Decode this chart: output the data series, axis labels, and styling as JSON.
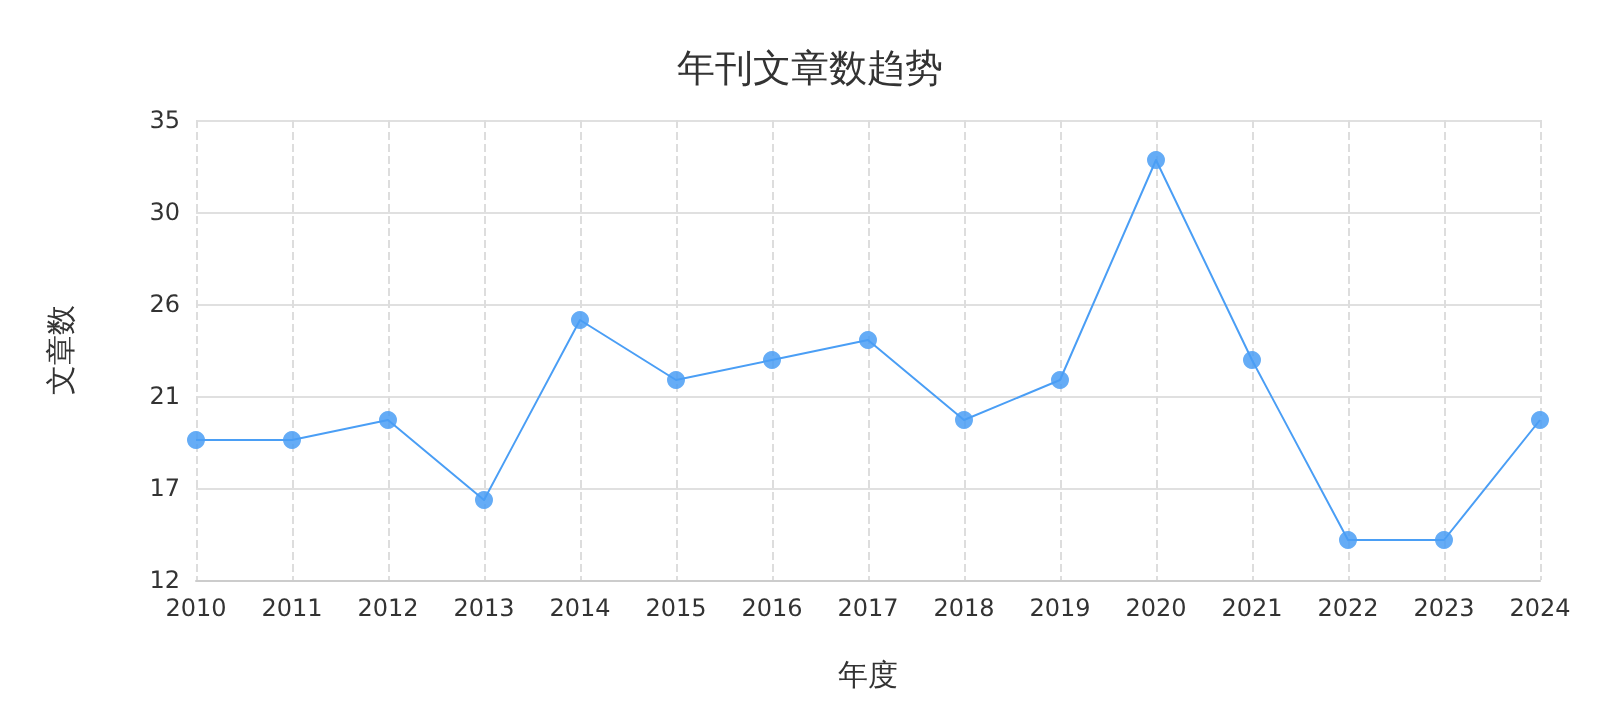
{
  "chart_data": {
    "type": "line",
    "title": "年刊文章数趋势",
    "xlabel": "年度",
    "ylabel": "文章数",
    "categories": [
      "2010",
      "2011",
      "2012",
      "2013",
      "2014",
      "2015",
      "2016",
      "2017",
      "2018",
      "2019",
      "2020",
      "2021",
      "2022",
      "2023",
      "2024"
    ],
    "series": [
      {
        "color": "#4a9ef5",
        "values": [
          19,
          19,
          20,
          16,
          25,
          22,
          23,
          24,
          20,
          22,
          33,
          23,
          14,
          14,
          20
        ]
      }
    ],
    "ylim": [
      12,
      35
    ],
    "yticks": [
      12,
      {
        "value": 16.6,
        "label": "17"
      },
      {
        "value": 21.2,
        "label": "21"
      },
      {
        "value": 25.8,
        "label": "26"
      },
      {
        "value": 30.4,
        "label": "30"
      },
      35
    ],
    "grid": true,
    "marker": "circle",
    "line_style": "solid"
  }
}
